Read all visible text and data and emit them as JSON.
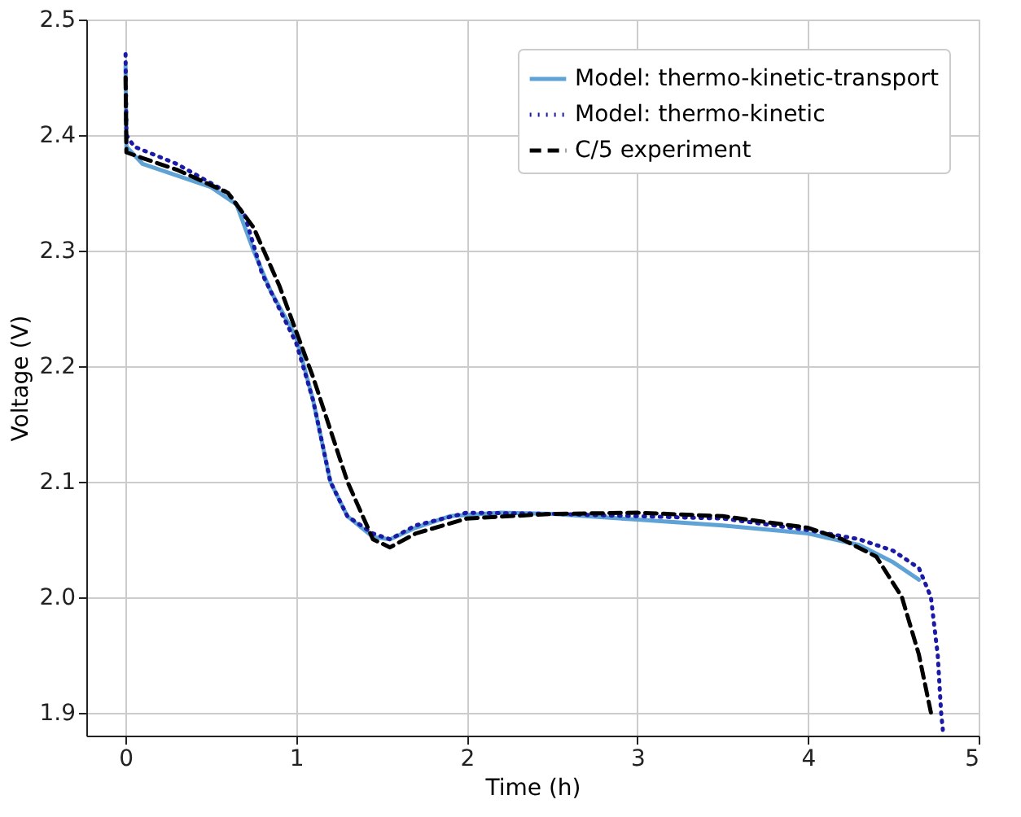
{
  "chart_data": {
    "type": "line",
    "xlabel": "Time (h)",
    "ylabel": "Voltage (V)",
    "xlim": [
      -0.23,
      5.0
    ],
    "xticks": [
      0,
      1,
      2,
      3,
      4,
      5
    ],
    "ylim": [
      1.88,
      2.5
    ],
    "yticks": [
      1.9,
      {
        "value": 2.0,
        "label": "2.0"
      },
      2.1,
      2.2,
      2.3,
      2.4,
      2.5
    ],
    "grid": true,
    "legend": "top right",
    "series": [
      {
        "name": "Model: thermo-kinetic-transport",
        "color": "#5fa2d5",
        "line_style": "solid",
        "x": [
          0,
          0.005,
          0.1,
          0.3,
          0.5,
          0.65,
          0.75,
          0.85,
          1.0,
          1.1,
          1.2,
          1.3,
          1.45,
          1.55,
          1.7,
          1.9,
          2.2,
          2.5,
          3.0,
          3.5,
          4.0,
          4.3,
          4.5,
          4.65
        ],
        "values": [
          2.46,
          2.39,
          2.375,
          2.365,
          2.355,
          2.34,
          2.3,
          2.265,
          2.225,
          2.17,
          2.1,
          2.07,
          2.052,
          2.05,
          2.06,
          2.07,
          2.073,
          2.072,
          2.067,
          2.062,
          2.055,
          2.045,
          2.03,
          2.015
        ]
      },
      {
        "name": "Model: thermo-kinetic",
        "color": "#1a1aa6",
        "line_style": "dotted",
        "x": [
          0,
          0.005,
          0.05,
          0.3,
          0.6,
          0.7,
          0.8,
          1.0,
          1.1,
          1.2,
          1.3,
          1.45,
          1.55,
          1.7,
          2.0,
          2.5,
          3.0,
          3.5,
          4.0,
          4.3,
          4.5,
          4.65,
          4.72,
          4.76,
          4.78,
          4.79
        ],
        "values": [
          2.47,
          2.4,
          2.39,
          2.375,
          2.35,
          2.33,
          2.28,
          2.22,
          2.17,
          2.1,
          2.07,
          2.055,
          2.05,
          2.062,
          2.073,
          2.072,
          2.07,
          2.068,
          2.058,
          2.05,
          2.04,
          2.025,
          2.0,
          1.95,
          1.9,
          1.885
        ]
      },
      {
        "name": "C/5 experiment",
        "color": "#000000",
        "line_style": "dashed",
        "x": [
          0,
          0.005,
          0.1,
          0.3,
          0.6,
          0.75,
          0.9,
          1.0,
          1.1,
          1.3,
          1.45,
          1.55,
          1.7,
          2.0,
          2.5,
          3.0,
          3.5,
          4.0,
          4.2,
          4.4,
          4.55,
          4.65,
          4.72
        ],
        "values": [
          2.45,
          2.385,
          2.38,
          2.37,
          2.35,
          2.32,
          2.27,
          2.23,
          2.19,
          2.1,
          2.05,
          2.043,
          2.055,
          2.068,
          2.072,
          2.073,
          2.07,
          2.06,
          2.05,
          2.035,
          2.0,
          1.95,
          1.9
        ]
      }
    ]
  }
}
